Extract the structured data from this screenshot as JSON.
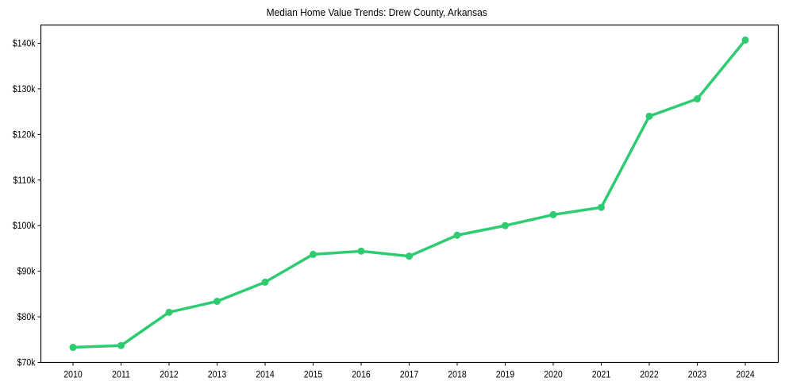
{
  "chart_data": {
    "type": "line",
    "title": "Median Home Value Trends: Drew County, Arkansas",
    "xlabel": "",
    "ylabel": "",
    "categories": [
      "2010",
      "2011",
      "2012",
      "2013",
      "2014",
      "2015",
      "2016",
      "2017",
      "2018",
      "2019",
      "2020",
      "2021",
      "2022",
      "2023",
      "2024"
    ],
    "series": [
      {
        "name": "Median Home Value",
        "color": "#2ecc71",
        "marker": "circle",
        "values": [
          73300,
          73700,
          81000,
          83400,
          87600,
          93700,
          94400,
          93300,
          97900,
          100000,
          102400,
          104000,
          124000,
          127800,
          140700
        ]
      }
    ],
    "yticks": [
      70000,
      80000,
      90000,
      100000,
      110000,
      120000,
      130000,
      140000
    ],
    "ytick_labels": [
      "$70k",
      "$80k",
      "$90k",
      "$100k",
      "$110k",
      "$120k",
      "$130k",
      "$140k"
    ],
    "ylim": [
      70000,
      144000
    ],
    "grid": false,
    "legend": null
  }
}
